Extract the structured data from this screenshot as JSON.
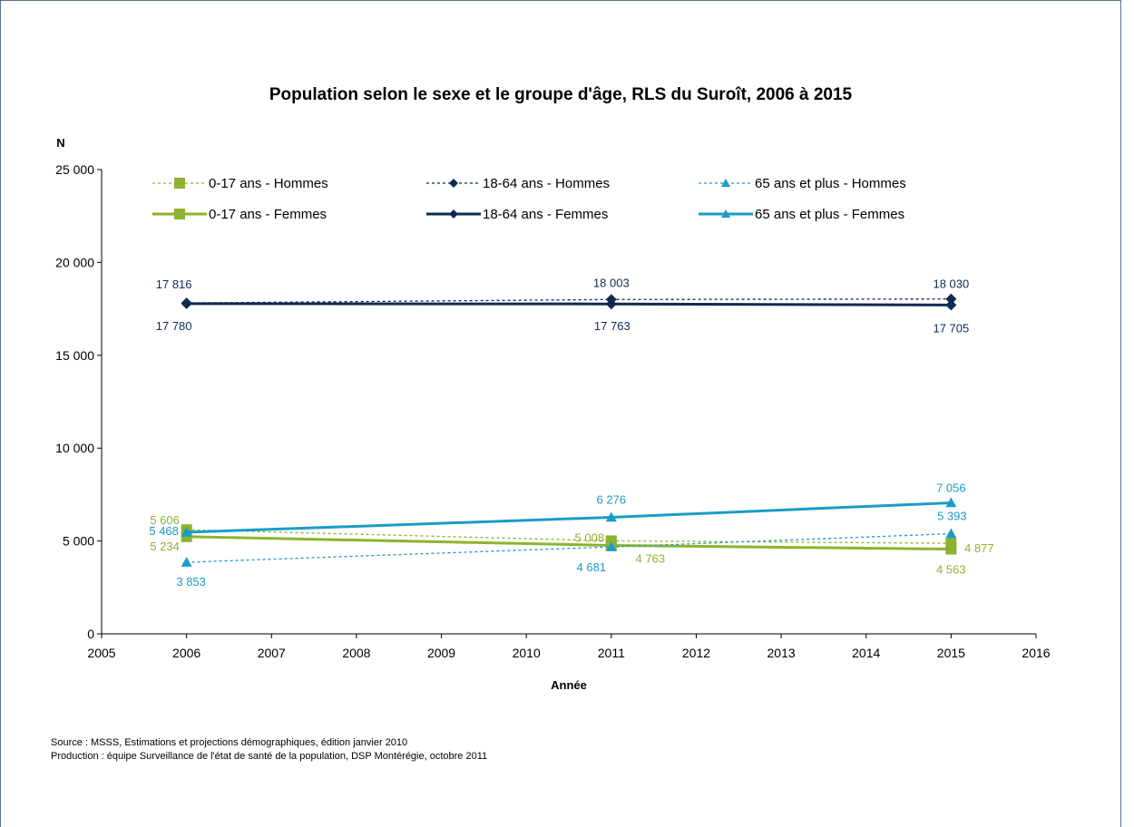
{
  "chart_data": {
    "type": "line",
    "title": "Population selon le sexe et le groupe d'âge, RLS du Suroît, 2006 à 2015",
    "xlabel": "Année",
    "ylabel": "N",
    "xlim": [
      2005,
      2016
    ],
    "ylim": [
      0,
      25000
    ],
    "x_ticks": [
      "2005",
      "2006",
      "2007",
      "2008",
      "2009",
      "2010",
      "2011",
      "2012",
      "2013",
      "2014",
      "2015",
      "2016"
    ],
    "y_ticks": [
      "0",
      "5 000",
      "10 000",
      "15 000",
      "20 000",
      "25 000"
    ],
    "grid": false,
    "legend_position": "top",
    "series": [
      {
        "name": "0-17 ans - Hommes",
        "color": "#8db32e",
        "style": "dashed",
        "marker": "square",
        "x": [
          2006,
          2011,
          2015
        ],
        "values": [
          5606,
          5008,
          4877
        ],
        "labels": [
          "5 606",
          "5 008",
          "4 877"
        ]
      },
      {
        "name": "18-64 ans - Hommes",
        "color": "#0e2a52",
        "style": "dashed",
        "marker": "diamond",
        "x": [
          2006,
          2011,
          2015
        ],
        "values": [
          17816,
          18003,
          18030
        ],
        "labels": [
          "17 816",
          "18 003",
          "18 030"
        ]
      },
      {
        "name": "65 ans et plus - Hommes",
        "color": "#1a9cc8",
        "style": "dashed",
        "marker": "triangle",
        "x": [
          2006,
          2011,
          2015
        ],
        "values": [
          3853,
          4681,
          5393
        ],
        "labels": [
          "3 853",
          "4 681",
          "5 393"
        ]
      },
      {
        "name": "0-17 ans - Femmes",
        "color": "#8db32e",
        "style": "solid",
        "marker": "square",
        "x": [
          2006,
          2011,
          2015
        ],
        "values": [
          5234,
          4763,
          4563
        ],
        "labels": [
          "5 234",
          "4 763",
          "4 563"
        ]
      },
      {
        "name": "18-64 ans - Femmes",
        "color": "#0e2a52",
        "style": "solid",
        "marker": "diamond",
        "x": [
          2006,
          2011,
          2015
        ],
        "values": [
          17780,
          17763,
          17705
        ],
        "labels": [
          "17 780",
          "17 763",
          "17 705"
        ]
      },
      {
        "name": "65 ans et plus - Femmes",
        "color": "#1a9cc8",
        "style": "solid",
        "marker": "triangle",
        "x": [
          2006,
          2011,
          2015
        ],
        "values": [
          5468,
          6276,
          7056
        ],
        "labels": [
          "5 468",
          "6 276",
          "7 056"
        ]
      }
    ]
  },
  "source_line": "Source : MSSS, Estimations et projections démographiques, édition janvier 2010",
  "production_line": "Production : équipe Surveillance de l'état de santé de la population, DSP Montérégie, octobre 2011"
}
